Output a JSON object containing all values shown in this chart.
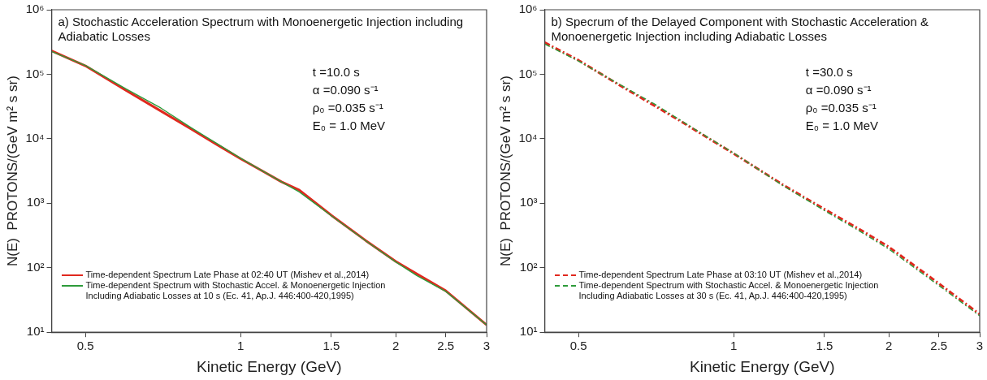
{
  "chart_data": [
    {
      "type": "line",
      "title": "a) Stochastic Acceleration Spectrum with Monoenergetic Injection including Adiabatic Losses",
      "xlabel": "Kinetic Energy (GeV)",
      "ylabel": "N(E)  PROTONS/(GeV m² s sr)",
      "log": "xy",
      "xlim": [
        0.43,
        3
      ],
      "xticks": [
        0.5,
        1,
        1.5,
        2,
        2.5,
        3
      ],
      "ylim": [
        10,
        1000000
      ],
      "yticks": [
        {
          "value": 10,
          "label": "10¹"
        },
        {
          "value": 100,
          "label": "10²"
        },
        {
          "value": 1000,
          "label": "10³"
        },
        {
          "value": 10000,
          "label": "10⁴"
        },
        {
          "value": 100000,
          "label": "10⁵"
        },
        {
          "value": 1000000,
          "label": "10⁶"
        }
      ],
      "grid": false,
      "legend": "bottom left",
      "line_style": "solid",
      "marker": "none",
      "annotations": [
        "t =10.0 s",
        "α =0.090 s⁻¹",
        "ρ₀ =0.035 s⁻¹",
        "E₀ = 1.0 MeV"
      ],
      "series": [
        {
          "name": "Time-dependent Spectrum Late Phase at 02:40 UT (Mishev et al.,2014)",
          "color": "#e0281e",
          "x": [
            0.43,
            0.5,
            0.6,
            0.7,
            0.8,
            0.9,
            1,
            1.1,
            1.2,
            1.3,
            1.5,
            1.75,
            2,
            2.2,
            2.5,
            3
          ],
          "values": [
            230000,
            135000,
            56000,
            27000,
            14300,
            8100,
            4900,
            3200,
            2150,
            1600,
            650,
            263,
            125,
            80,
            44,
            13
          ]
        },
        {
          "name": "Time-dependent Spectrum with Stochastic Accel. & Monoenergetic Injection Including Adiabatic Losses at 10 s (Ec. 41, Ap.J. 446:400-420,1995)",
          "color": "#2e9b3a",
          "x": [
            0.43,
            0.5,
            0.6,
            0.7,
            0.8,
            0.9,
            1,
            1.1,
            1.2,
            1.3,
            1.5,
            1.75,
            2,
            2.2,
            2.5,
            3
          ],
          "values": [
            225000,
            137000,
            59000,
            30000,
            15000,
            8400,
            5000,
            3200,
            2150,
            1500,
            640,
            260,
            123,
            75,
            43,
            13
          ]
        }
      ]
    },
    {
      "type": "line",
      "title": "b) Specrum of the Delayed Component with Stochastic Acceleration & Monoenergetic Injection including Adiabatic Losses",
      "xlabel": "Kinetic Energy (GeV)",
      "ylabel": "N(E)  PROTONS/(GeV m² s sr)",
      "log": "xy",
      "xlim": [
        0.43,
        3
      ],
      "xticks": [
        0.5,
        1,
        1.5,
        2,
        2.5,
        3
      ],
      "ylim": [
        10,
        1000000
      ],
      "yticks": [
        {
          "value": 10,
          "label": "10¹"
        },
        {
          "value": 100,
          "label": "10²"
        },
        {
          "value": 1000,
          "label": "10³"
        },
        {
          "value": 10000,
          "label": "10⁴"
        },
        {
          "value": 100000,
          "label": "10⁵"
        },
        {
          "value": 1000000,
          "label": "10⁶"
        }
      ],
      "grid": false,
      "legend": "bottom left",
      "line_style": "dashed",
      "marker": "none",
      "annotations": [
        "t =30.0 s",
        "α =0.090 s⁻¹",
        "ρ₀ =0.035 s⁻¹",
        "E₀ = 1.0 MeV"
      ],
      "series": [
        {
          "name": "Time-dependent Spectrum Late Phase at 03:10 UT (Mishev et al.,2014)",
          "color": "#e0281e",
          "x": [
            0.43,
            0.5,
            0.6,
            0.7,
            0.8,
            0.9,
            1,
            1.25,
            1.5,
            1.75,
            2,
            2.5,
            3
          ],
          "values": [
            310000,
            165000,
            68000,
            33000,
            17500,
            9800,
            5900,
            1900,
            810,
            400,
            210,
            57,
            19
          ]
        },
        {
          "name": "Time-dependent Spectrum with Stochastic Accel. & Monoenergetic Injection Including Adiabatic Losses at 30 s (Ec. 41, Ap.J. 446:400-420,1995)",
          "color": "#2e9b3a",
          "x": [
            0.43,
            0.5,
            0.6,
            0.7,
            0.8,
            0.9,
            1,
            1.25,
            1.5,
            1.75,
            2,
            2.5,
            3
          ],
          "values": [
            295000,
            160000,
            70000,
            35000,
            18000,
            10000,
            6000,
            1850,
            770,
            375,
            195,
            53,
            18
          ]
        }
      ]
    }
  ]
}
